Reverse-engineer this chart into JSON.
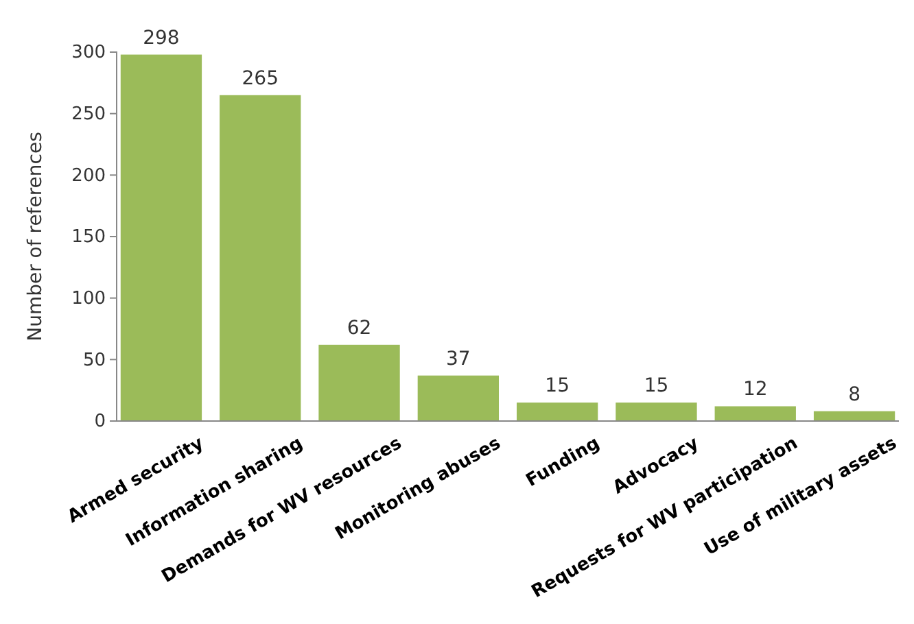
{
  "chart_data": {
    "type": "bar",
    "ylabel": "Number of references",
    "categories": [
      "Armed security",
      "Information sharing",
      "Demands for WV resources",
      "Monitoring abuses",
      "Funding",
      "Advocacy",
      "Requests for WV participation",
      "Use of military assets"
    ],
    "values": [
      298,
      265,
      62,
      37,
      15,
      15,
      12,
      8
    ],
    "color": "#9bbb59",
    "ylim": [
      0,
      300
    ],
    "yticks": [
      0,
      50,
      100,
      150,
      200,
      250,
      300
    ],
    "grid": false,
    "data_labels": true
  }
}
